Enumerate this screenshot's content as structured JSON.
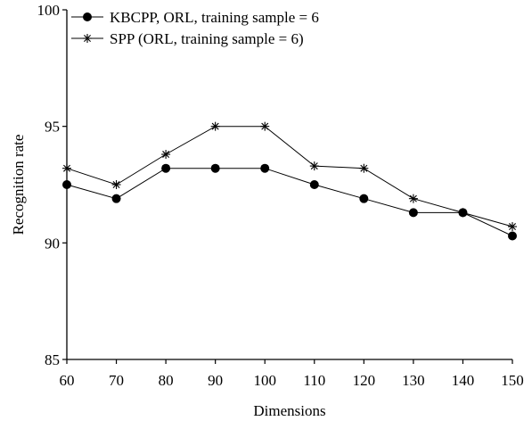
{
  "chart_data": {
    "type": "line",
    "title": "",
    "xlabel": "Dimensions",
    "ylabel": "Recognition rate",
    "x": [
      60,
      70,
      80,
      90,
      100,
      110,
      120,
      130,
      140,
      150
    ],
    "xlim": [
      60,
      150
    ],
    "ylim": [
      85,
      100
    ],
    "x_ticks": [
      60,
      70,
      80,
      90,
      100,
      110,
      120,
      130,
      140,
      150
    ],
    "y_ticks": [
      85,
      90,
      95,
      100
    ],
    "grid": false,
    "legend_position": "top-left",
    "series": [
      {
        "name": "KBCPP, ORL, training sample = 6",
        "marker": "filled-circle",
        "color": "#000000",
        "values": [
          92.5,
          91.9,
          93.2,
          93.2,
          93.2,
          92.5,
          91.9,
          91.3,
          91.3,
          90.3
        ]
      },
      {
        "name": "SPP (ORL, training sample = 6)",
        "marker": "asterisk",
        "color": "#000000",
        "values": [
          93.2,
          92.5,
          93.8,
          95.0,
          95.0,
          93.3,
          93.2,
          91.9,
          91.3,
          90.7
        ]
      }
    ]
  }
}
